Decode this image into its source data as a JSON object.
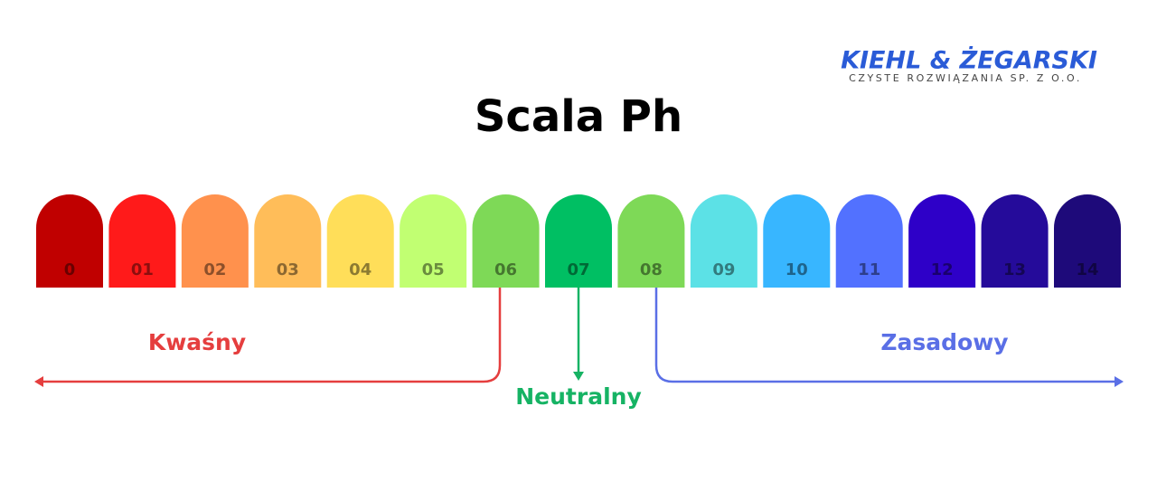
{
  "logo": {
    "name": "KIEHL & ŻEGARSKI",
    "tagline": "CZYSTE ROZWIĄZANIA SP. Z O.O.",
    "color": "#2a5bd7"
  },
  "title": "Scala Ph",
  "scale": [
    {
      "label": "0",
      "color": "#c00000"
    },
    {
      "label": "01",
      "color": "#ff1a1a"
    },
    {
      "label": "02",
      "color": "#ff914d"
    },
    {
      "label": "03",
      "color": "#ffbd59"
    },
    {
      "label": "04",
      "color": "#ffde59"
    },
    {
      "label": "05",
      "color": "#c1ff72"
    },
    {
      "label": "06",
      "color": "#7ed957"
    },
    {
      "label": "07",
      "color": "#00bf63"
    },
    {
      "label": "08",
      "color": "#7ed957"
    },
    {
      "label": "09",
      "color": "#5ce1e6"
    },
    {
      "label": "10",
      "color": "#38b6ff"
    },
    {
      "label": "11",
      "color": "#5271ff"
    },
    {
      "label": "12",
      "color": "#2e00c8"
    },
    {
      "label": "13",
      "color": "#250b9a"
    },
    {
      "label": "14",
      "color": "#1e0a7a"
    }
  ],
  "annotations": {
    "acidic": {
      "text": "Kwaśny",
      "color": "#e53e3e"
    },
    "neutral": {
      "text": "Neutralny",
      "color": "#16b364"
    },
    "alkaline": {
      "text": "Zasadowy",
      "color": "#5a6fe6"
    }
  }
}
